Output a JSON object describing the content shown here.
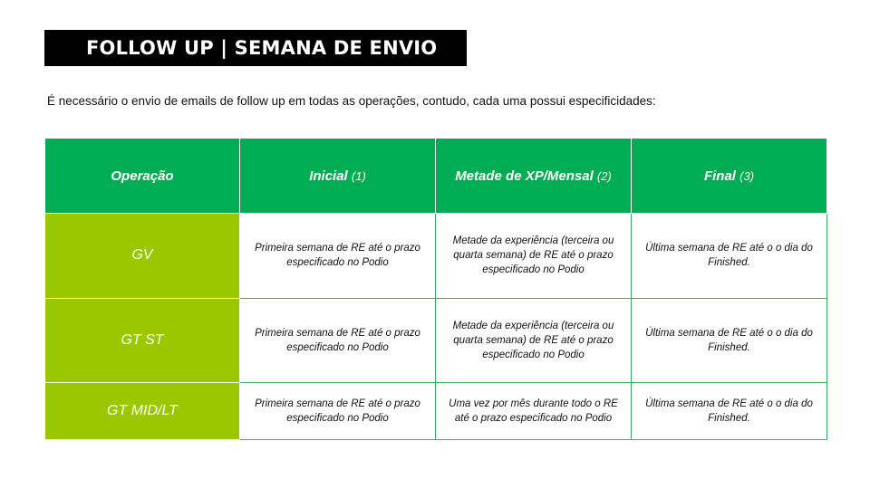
{
  "title": "FOLLOW UP | SEMANA DE ENVIO",
  "intro": "É necessário o envio de emails de follow up em todas as operações, contudo, cada uma possui especificidades:",
  "table": {
    "headers": [
      {
        "label": "Operação",
        "num": ""
      },
      {
        "label": "Inicial",
        "num": "(1)"
      },
      {
        "label": "Metade de XP/Mensal",
        "num": "(2)"
      },
      {
        "label": "Final",
        "num": "(3)"
      }
    ],
    "rows": [
      {
        "operation": "GV",
        "cells": [
          "Primeira semana de RE até o prazo especificado no Podio",
          "Metade da experiência (terceira ou quarta semana)  de RE até o prazo especificado no Podio",
          "Última semana de RE até o o dia do Finished."
        ]
      },
      {
        "operation": "GT ST",
        "cells": [
          "Primeira semana de RE até o prazo especificado no Podio",
          "Metade da experiência (terceira ou quarta semana)  de RE até o prazo especificado no Podio",
          "Última semana de RE até o o dia do Finished."
        ]
      },
      {
        "operation": "GT MID/LT",
        "cells": [
          "Primeira semana de RE até o prazo especificado no Podio",
          "Uma vez por mês durante todo o RE até o prazo especificado no Podio",
          "Última semana de RE até o o dia do Finished."
        ]
      }
    ]
  },
  "colors": {
    "header_green": "#00ad55",
    "row_lime": "#99c700",
    "title_bg": "#000000",
    "border_green": "#2fb15a"
  }
}
